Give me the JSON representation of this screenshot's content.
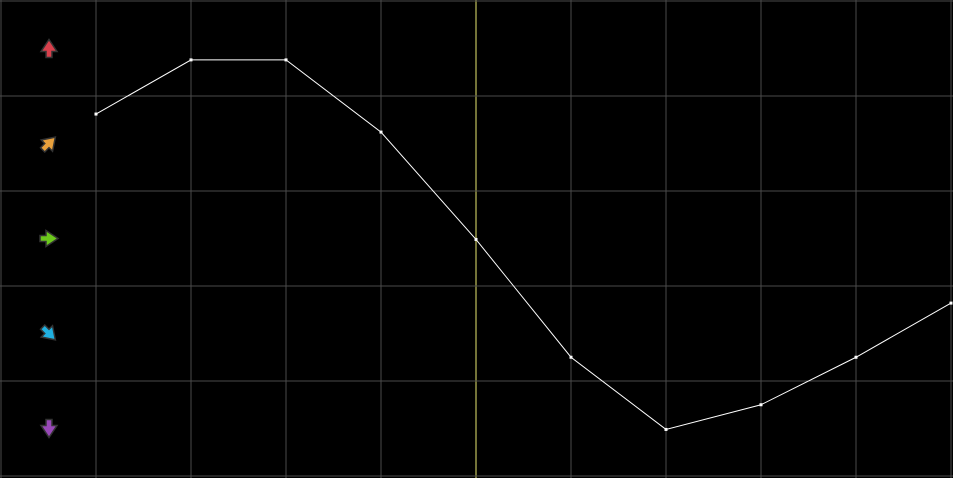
{
  "chart_data": {
    "type": "line",
    "x": [
      1,
      2,
      3,
      4,
      5,
      6,
      7,
      8,
      9,
      10
    ],
    "values": [
      3.81,
      4.38,
      4.38,
      3.62,
      2.49,
      1.25,
      0.49,
      0.75,
      1.25,
      1.82
    ],
    "xlim": [
      0,
      10
    ],
    "ylim": [
      0,
      5
    ],
    "grid": true,
    "marker_x": 5,
    "row_icons": [
      "arrow-up-icon",
      "arrow-up-right-icon",
      "arrow-right-icon",
      "arrow-down-right-icon",
      "arrow-down-icon"
    ],
    "row_colors": [
      "#d8404c",
      "#e8a03c",
      "#6cc81c",
      "#20b0e0",
      "#9848b8"
    ],
    "colors": {
      "background": "#000000",
      "grid": "#4a4a4a",
      "line": "#ffffff",
      "marker": "#e8e870"
    }
  }
}
